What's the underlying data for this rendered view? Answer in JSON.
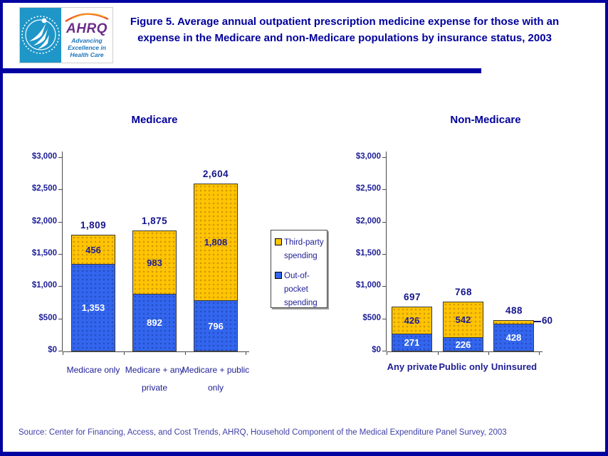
{
  "header": {
    "logo": {
      "hhs_emblem": "HHS eagle emblem",
      "ahrq": "AHRQ",
      "tagline": "Advancing\nExcellence in\nHealth Care"
    },
    "title": "Figure 5. Average annual outpatient prescription medicine expense for those with an expense in the Medicare and non-Medicare populations by insurance status, 2003"
  },
  "legend": {
    "items": [
      {
        "label": "Third-party spending",
        "color": "#FFC403"
      },
      {
        "label": "Out-of-pocket spending",
        "color": "#3366EE"
      }
    ]
  },
  "colors": {
    "accent_navy": "#00009C",
    "bar_blue": "#3366EE",
    "bar_yellow": "#FFC403",
    "source_text": "#4040A8"
  },
  "chart_data": [
    {
      "type": "bar",
      "stacked": true,
      "title": "Medicare",
      "categories": [
        "Medicare only",
        "Medicare + any private",
        "Medicare + public only"
      ],
      "series": [
        {
          "name": "Out-of-pocket spending",
          "color": "#3366EE",
          "values": [
            1353,
            892,
            796
          ]
        },
        {
          "name": "Third-party spending",
          "color": "#FFC403",
          "values": [
            456,
            983,
            1808
          ]
        }
      ],
      "totals": [
        1809,
        1875,
        2604
      ],
      "xlabel": "",
      "ylabel": "",
      "ylim": [
        0,
        3000
      ],
      "ytick_interval": 500,
      "ytick_labels": [
        "$0",
        "$500",
        "$1,000",
        "$1,500",
        "$2,000",
        "$2,500",
        "$3,000"
      ],
      "grid": false,
      "legend_position": "right-of-chart"
    },
    {
      "type": "bar",
      "stacked": true,
      "title": "Non-Medicare",
      "categories": [
        "Any private",
        "Public only",
        "Uninsured"
      ],
      "series": [
        {
          "name": "Out-of-pocket spending",
          "color": "#3366EE",
          "values": [
            271,
            226,
            428
          ]
        },
        {
          "name": "Third-party spending",
          "color": "#FFC403",
          "values": [
            426,
            542,
            60
          ]
        }
      ],
      "totals": [
        697,
        768,
        488
      ],
      "callout": {
        "category": "Uninsured",
        "series": "Third-party spending",
        "label": "60"
      },
      "xlabel": "",
      "ylabel": "",
      "ylim": [
        0,
        3000
      ],
      "ytick_interval": 500,
      "ytick_labels": [
        "$0",
        "$500",
        "$1,000",
        "$1,500",
        "$2,000",
        "$2,500",
        "$3,000"
      ],
      "grid": false,
      "legend_position": "left-of-chart"
    }
  ],
  "footer": {
    "source": "Source: Center for Financing, Access, and Cost Trends, AHRQ, Household Component of the Medical Expenditure Panel Survey, 2003"
  }
}
